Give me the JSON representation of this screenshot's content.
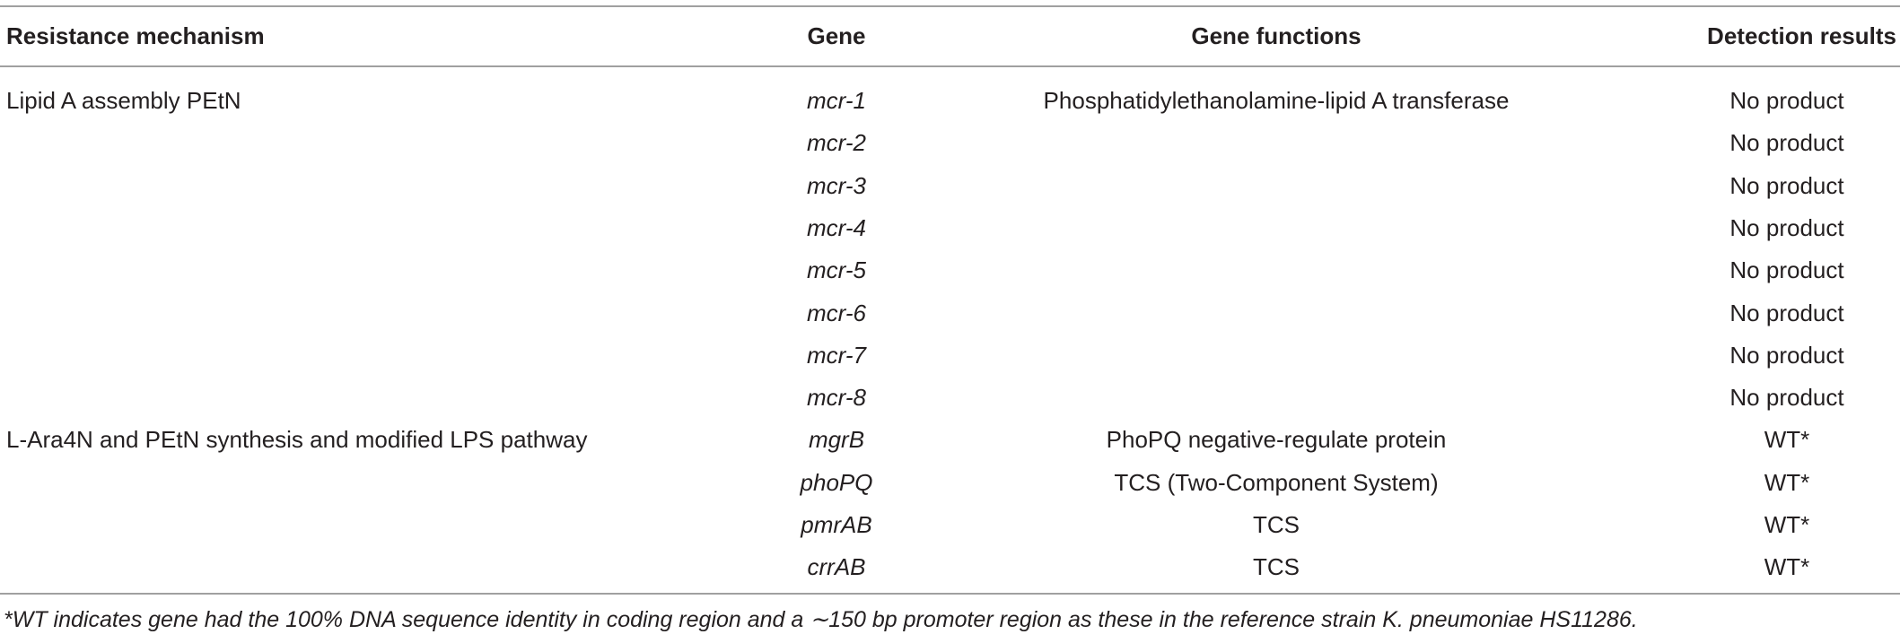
{
  "table": {
    "header": [
      "Resistance mechanism",
      "Gene",
      "Gene functions",
      "Detection results"
    ],
    "rows": [
      {
        "mechanism": "Lipid A assembly PEtN",
        "gene": "mcr-1",
        "function": "Phosphatidylethanolamine-lipid A transferase",
        "result": "No product"
      },
      {
        "gene": "mcr-2",
        "result": "No product"
      },
      {
        "gene": "mcr-3",
        "result": "No product"
      },
      {
        "gene": "mcr-4",
        "result": "No product"
      },
      {
        "gene": "mcr-5",
        "result": "No product"
      },
      {
        "gene": "mcr-6",
        "result": "No product"
      },
      {
        "gene": "mcr-7",
        "result": "No product"
      },
      {
        "gene": "mcr-8",
        "result": "No product"
      },
      {
        "mechanism": "L-Ara4N and PEtN synthesis and modified LPS pathway",
        "gene": "mgrB",
        "function": "PhoPQ negative-regulate protein",
        "result": "WT*"
      },
      {
        "gene": "phoPQ",
        "function": "TCS (Two-Component System)",
        "result": "WT*"
      },
      {
        "gene": "pmrAB",
        "function": "TCS",
        "result": "WT*"
      },
      {
        "gene": "crrAB",
        "function": "TCS",
        "result": "WT*"
      }
    ]
  },
  "footnote": "*WT indicates gene had the 100% DNA sequence identity in coding region and a ∼150 bp promoter region as these in the reference strain K. pneumoniae HS11286."
}
